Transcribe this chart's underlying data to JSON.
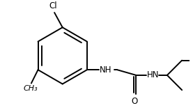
{
  "bg_color": "#ffffff",
  "line_color": "#000000",
  "lw": 1.4,
  "font_size": 8.5,
  "cl_label": "Cl",
  "o_label": "O",
  "nh1_label": "NH",
  "hn2_label": "HN"
}
